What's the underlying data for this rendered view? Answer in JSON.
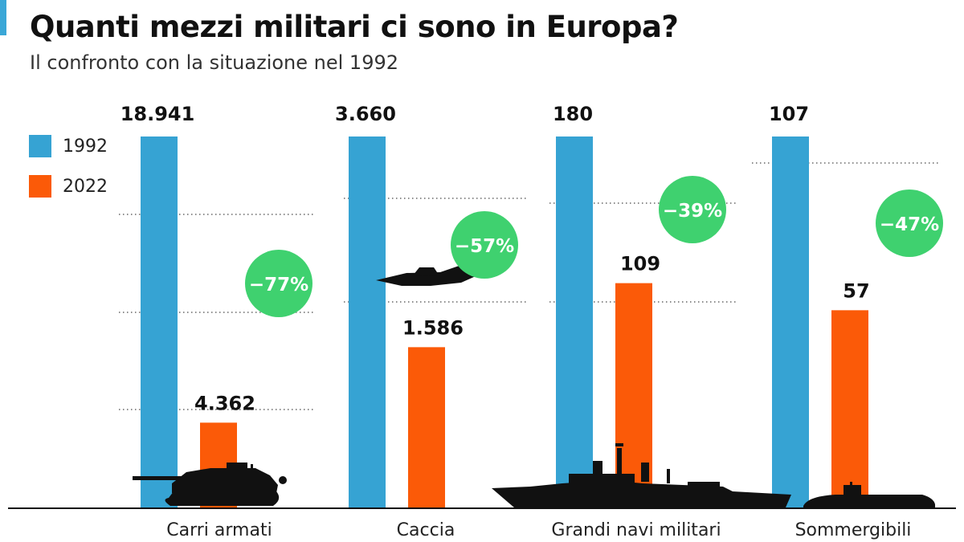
{
  "header": {
    "title": "Quanti mezzi militari ci sono in Europa?",
    "subtitle": "Il confronto con la situazione nel 1992"
  },
  "colors": {
    "y1992": "#36a3d3",
    "y2022": "#fb5a08",
    "badge": "#3fd16f",
    "accent": "#3aa7d7"
  },
  "chart_data": {
    "type": "bar",
    "title": "Quanti mezzi militari ci sono in Europa?",
    "subtitle": "Il confronto con la situazione nel 1992",
    "categories": [
      "Carri armati",
      "Caccia",
      "Grandi navi militari",
      "Sommergibili"
    ],
    "series": [
      {
        "name": "1992",
        "values": [
          18941,
          3660,
          180,
          107
        ],
        "labels": [
          "18.941",
          "3.660",
          "180",
          "107"
        ]
      },
      {
        "name": "2022",
        "values": [
          4362,
          1586,
          109,
          57
        ],
        "labels": [
          "4.362",
          "1.586",
          "109",
          "57"
        ]
      }
    ],
    "changes": [
      "−77%",
      "−57%",
      "−39%",
      "−47%"
    ],
    "icons": [
      "tank-icon",
      "fighter-jet-icon",
      "warship-icon",
      "submarine-icon"
    ],
    "scale": "per-category (each pair scaled to its own 1992 value)",
    "legend_position": "top-left",
    "xlabel": "",
    "ylabel": ""
  }
}
